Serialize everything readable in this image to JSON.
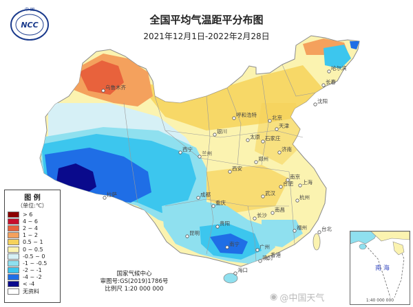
{
  "header": {
    "title": "全国平均气温距平分布图",
    "date_range": "2021年12月1日-2022年2月28日"
  },
  "logo": {
    "top_text": "中 国",
    "mark_text": "NCC"
  },
  "legend": {
    "title": "图 例",
    "unit": "（单位:℃）",
    "items": [
      {
        "label": "> 6",
        "color": "#8b0000"
      },
      {
        "label": "4 ~ 6",
        "color": "#c8102e"
      },
      {
        "label": "2 ~ 4",
        "color": "#e8623c"
      },
      {
        "label": "1 ~ 2",
        "color": "#f4a15d"
      },
      {
        "label": "0.5 ~ 1",
        "color": "#f6d25a"
      },
      {
        "label": "0 ~ 0.5",
        "color": "#fbf3b0"
      },
      {
        "label": "-0.5 ~ 0",
        "color": "#d6f0f6"
      },
      {
        "label": "-1 ~ -0.5",
        "color": "#8fe0ef"
      },
      {
        "label": "-2 ~ -1",
        "color": "#3cc6ee"
      },
      {
        "label": "-4 ~ -2",
        "color": "#1f6ee6"
      },
      {
        "label": "< -4",
        "color": "#0a0a8c"
      },
      {
        "label": "无资料",
        "color": "#ffffff"
      }
    ]
  },
  "credit": {
    "agency": "国家气候中心",
    "review": "审图号:GS(2019)1786号",
    "scale": "比例尺 1:20 000 000"
  },
  "inset": {
    "sea_label": "南 海",
    "scale": "1:40 000 000"
  },
  "cities": [
    "乌鲁木齐",
    "哈尔滨",
    "长春",
    "沈阳",
    "呼和浩特",
    "北京",
    "天津",
    "银川",
    "太原",
    "石家庄",
    "济南",
    "西宁",
    "兰州",
    "郑州",
    "西安",
    "南京",
    "合肥",
    "拉萨",
    "成都",
    "武汉",
    "上海",
    "杭州",
    "重庆",
    "长沙",
    "南昌",
    "贵阳",
    "福州",
    "昆明",
    "南宁",
    "广州",
    "台北",
    "香港",
    "澳门",
    "海口"
  ],
  "watermark": "@中国天气"
}
